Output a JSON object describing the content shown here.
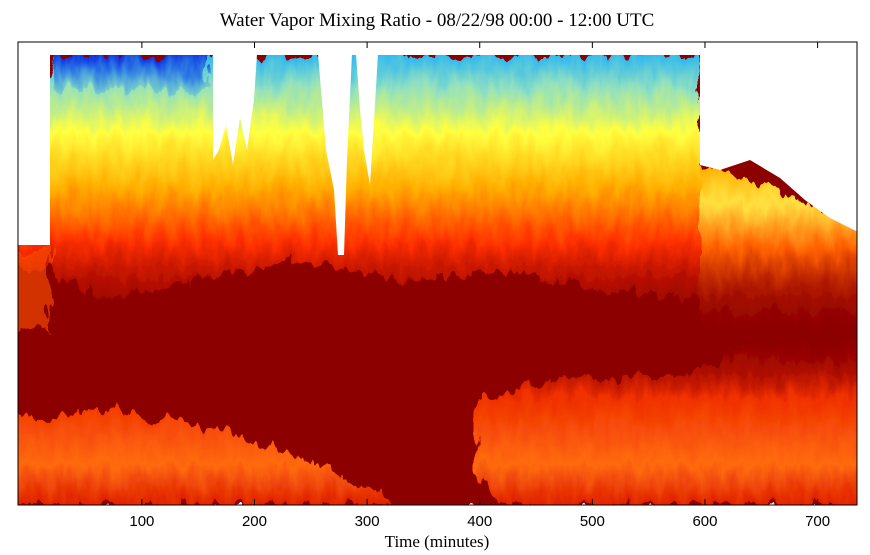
{
  "chart_data": {
    "type": "heatmap",
    "title": "Water Vapor Mixing Ratio - 08/22/98  00:00 - 12:00 UTC",
    "xlabel": "Time (minutes)",
    "xlim": [
      -10,
      735
    ],
    "xticks": [
      100,
      200,
      300,
      400,
      500,
      600,
      700
    ]
  }
}
